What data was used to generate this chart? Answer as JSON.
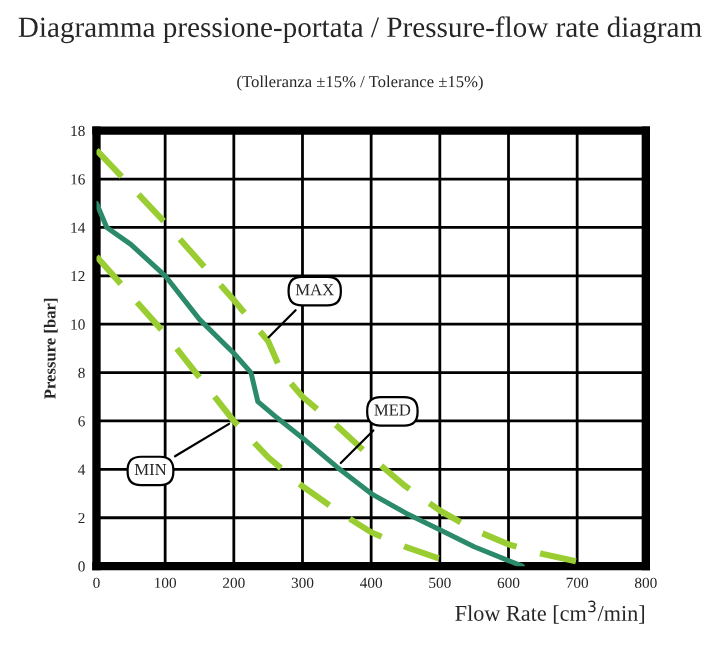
{
  "chart_data": {
    "type": "line",
    "title": "Diagramma pressione-portata / Pressure-flow rate diagram",
    "subtitle": "(Tolleranza ±15% / Tolerance ±15%)",
    "xlabel": "Flow Rate [cm$^{3}$/min]",
    "ylabel": "Pressure [bar]",
    "series": [
      {
        "color": "#9acd32",
        "line_style": "dashed",
        "x": [
          0,
          100,
          200,
          250,
          270,
          300,
          350,
          400,
          450,
          500,
          550,
          600,
          650,
          730
        ],
        "values": [
          17.2,
          14.2,
          11,
          9.3,
          8,
          7,
          5.8,
          4.5,
          3.3,
          2.3,
          1.5,
          0.9,
          0.5,
          0
        ]
      },
      {
        "color": "#2a8a6a",
        "line_style": "solid",
        "x": [
          0,
          15,
          50,
          100,
          150,
          200,
          225,
          235,
          260,
          300,
          350,
          400,
          450,
          500,
          550,
          620
        ],
        "values": [
          15,
          14,
          13.3,
          12,
          10.2,
          8.8,
          8,
          6.8,
          6.2,
          5.3,
          4.1,
          3,
          2.2,
          1.5,
          0.8,
          0
        ]
      },
      {
        "color": "#9acd32",
        "line_style": "dashed",
        "x": [
          0,
          100,
          150,
          200,
          250,
          300,
          350,
          400,
          450,
          530
        ],
        "values": [
          12.8,
          9.6,
          7.8,
          6,
          4.5,
          3.3,
          2.3,
          1.4,
          0.8,
          0
        ]
      }
    ],
    "annotations": [
      {
        "text": "MAX",
        "x": 245,
        "y": 9.3
      },
      {
        "text": "MED",
        "x": 350,
        "y": 4.1
      },
      {
        "text": "MIN",
        "x": 200,
        "y": 6
      }
    ],
    "xlim": [
      0,
      800
    ],
    "ylim": [
      0,
      18
    ],
    "xticks": [
      0,
      100,
      200,
      300,
      400,
      500,
      600,
      700,
      800
    ],
    "yticks": [
      0,
      2,
      4,
      6,
      8,
      10,
      12,
      14,
      16,
      18
    ],
    "grid": true,
    "legend": false
  }
}
